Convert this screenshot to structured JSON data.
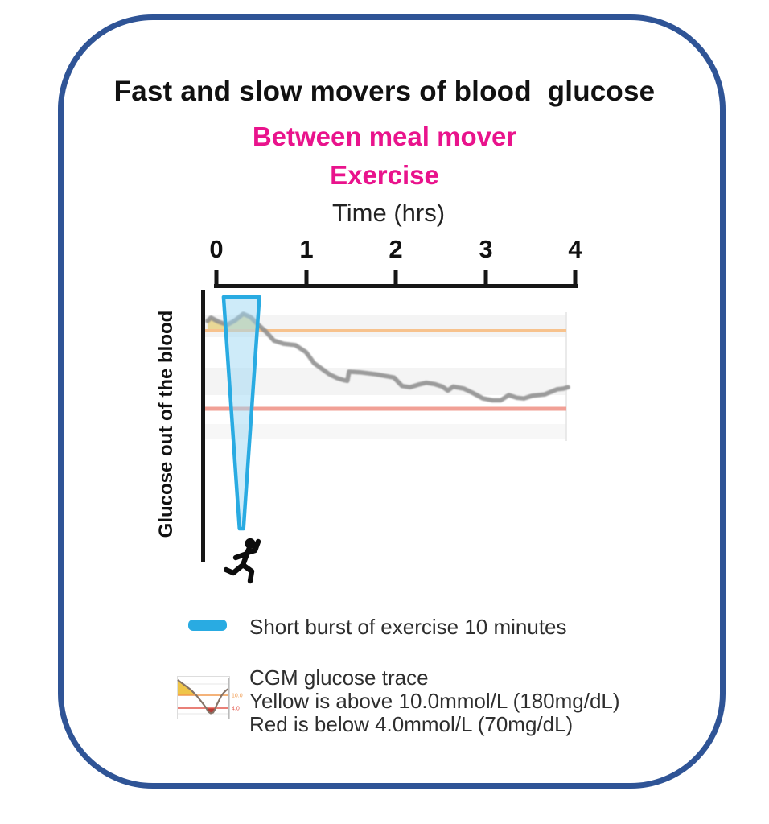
{
  "figure": {
    "title": "Fast and slow movers of blood  glucose",
    "subtitle1": "Between meal mover",
    "subtitle2": "Exercise"
  },
  "legend": {
    "exercise": {
      "label": "Short burst of exercise 10 minutes"
    },
    "cgm": {
      "line1": "CGM glucose trace",
      "line2": "Yellow is above 10.0mmol/L (180mg/dL)",
      "line3": "Red is below 4.0mmol/L (70mg/dL)",
      "icon_high_label": "10.0",
      "icon_low_label": "4.0"
    }
  },
  "colors": {
    "frame_blue": "#2F5496",
    "accent_magenta": "#E9138C",
    "exercise_blue": "#29ABE2",
    "exercise_fill": "rgba(158,216,243,0.5)",
    "threshold_high_orange": "#F7C28D",
    "threshold_low_red": "#F1A096",
    "trace_gray": "#8F8F8F",
    "above_range_yellow": "#E8D58C",
    "band_gray": "#f4f4f4"
  },
  "chart_data": {
    "type": "line",
    "xlabel": "Time (hrs)",
    "ylabel": "Glucose out of the blood",
    "x_tick_labels": [
      "0",
      "1",
      "2",
      "3",
      "4"
    ],
    "x_range_hours": [
      0,
      4
    ],
    "y_unit": "mmol/L",
    "y_axis_numeric_labels": false,
    "grid": "faint horizontal bands",
    "thresholds": {
      "high": {
        "value": 10.0,
        "unit": "mmol/L",
        "mgdl": 180,
        "color_name": "orange"
      },
      "low": {
        "value": 4.0,
        "unit": "mmol/L",
        "mgdl": 70,
        "color_name": "red"
      }
    },
    "series": [
      {
        "name": "CGM glucose trace",
        "unit": "mmol/L (estimated from plot)",
        "points": [
          [
            -0.1,
            10.75
          ],
          [
            -0.06,
            11.0
          ],
          [
            0.02,
            10.7
          ],
          [
            0.12,
            10.45
          ],
          [
            0.21,
            10.8
          ],
          [
            0.3,
            11.3
          ],
          [
            0.38,
            11.05
          ],
          [
            0.46,
            10.5
          ],
          [
            0.55,
            9.95
          ],
          [
            0.64,
            9.25
          ],
          [
            0.75,
            9.0
          ],
          [
            0.88,
            8.9
          ],
          [
            1.0,
            8.35
          ],
          [
            1.09,
            7.5
          ],
          [
            1.17,
            7.1
          ],
          [
            1.26,
            6.65
          ],
          [
            1.35,
            6.35
          ],
          [
            1.42,
            6.2
          ],
          [
            1.46,
            6.15
          ],
          [
            1.48,
            6.85
          ],
          [
            1.6,
            6.8
          ],
          [
            1.78,
            6.65
          ],
          [
            1.98,
            6.4
          ],
          [
            2.07,
            5.75
          ],
          [
            2.16,
            5.65
          ],
          [
            2.25,
            5.85
          ],
          [
            2.34,
            6.0
          ],
          [
            2.43,
            5.9
          ],
          [
            2.52,
            5.7
          ],
          [
            2.58,
            5.4
          ],
          [
            2.64,
            5.7
          ],
          [
            2.76,
            5.55
          ],
          [
            2.85,
            5.25
          ],
          [
            2.97,
            4.8
          ],
          [
            3.08,
            4.65
          ],
          [
            3.17,
            4.65
          ],
          [
            3.26,
            5.05
          ],
          [
            3.35,
            4.85
          ],
          [
            3.43,
            4.8
          ],
          [
            3.52,
            5.0
          ],
          [
            3.66,
            5.1
          ],
          [
            3.8,
            5.5
          ],
          [
            3.87,
            5.55
          ],
          [
            3.92,
            5.65
          ]
        ]
      }
    ],
    "annotations": [
      {
        "type": "exercise_burst",
        "label": "Short burst of exercise 10 minutes",
        "duration_minutes": 10,
        "t_start": 0.08,
        "t_end": 0.48,
        "t_tip": 0.28
      }
    ],
    "fills": [
      {
        "name": "above-high-threshold",
        "color_name": "yellow",
        "condition": "value >= 10.0"
      }
    ]
  }
}
